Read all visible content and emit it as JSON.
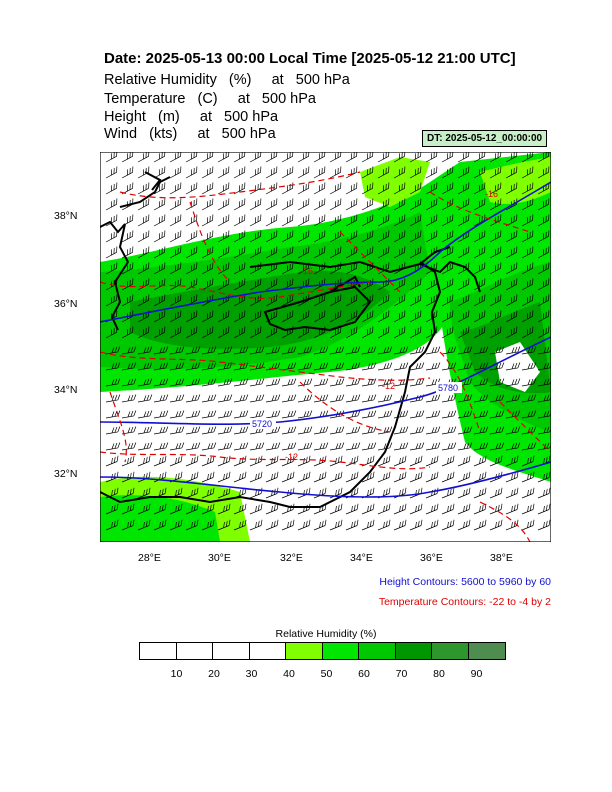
{
  "header": {
    "title": "Date: 2025-05-13  00:00 Local Time [2025-05-12  21:00 UTC]",
    "variables": [
      "Relative Humidity   (%)     at   500 hPa",
      "Temperature   (C)     at   500 hPa",
      "Height   (m)     at   500 hPa",
      "Wind   (kts)     at   500 hPa"
    ],
    "dt_badge": "DT: 2025-05-12_00:00:00"
  },
  "map": {
    "lat_labels": [
      "38°N",
      "36°N",
      "34°N",
      "32°N"
    ],
    "lon_labels": [
      "28°E",
      "30°E",
      "32°E",
      "34°E",
      "36°E",
      "38°E"
    ],
    "height_contour_labels": [
      "5720",
      "5780"
    ],
    "temp_contour_labels": [
      "-12",
      "-12",
      "-16",
      "-16"
    ],
    "colors": {
      "height_contour": "#1010d0",
      "temp_contour": "#e00000",
      "coast": "#000000"
    }
  },
  "notes": {
    "height_contours": "Height Contours: 5600 to 5960 by 60",
    "temp_contours": "Temperature Contours: -22 to -4 by 2"
  },
  "colorbar": {
    "title": "Relative Humidity  (%)",
    "labels": [
      "10",
      "20",
      "30",
      "40",
      "50",
      "60",
      "70",
      "80",
      "90"
    ],
    "colors": [
      "#ffffff",
      "#ffffff",
      "#ffffff",
      "#ffffff",
      "#80ff00",
      "#00e600",
      "#00c800",
      "#009600",
      "#2d962d",
      "#4f8c4f"
    ]
  }
}
